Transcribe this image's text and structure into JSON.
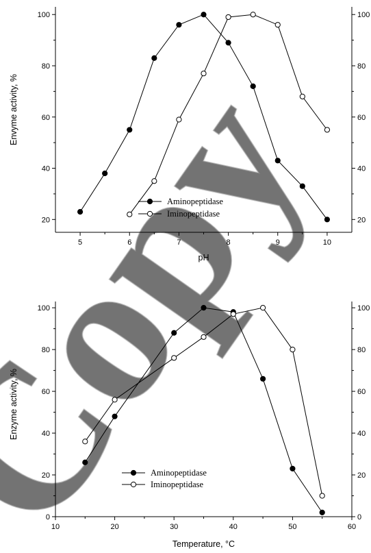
{
  "watermark": {
    "text": "Copy",
    "color": "#c8c8c8"
  },
  "chart_data": [
    {
      "type": "line",
      "xlabel": "pH",
      "ylabel": "Envyme activity, %",
      "xlim": [
        4.5,
        10.5
      ],
      "ylim": [
        15,
        103
      ],
      "x_ticks": [
        5,
        6,
        7,
        8,
        9,
        10
      ],
      "y_ticks": [
        20,
        40,
        60,
        80,
        100
      ],
      "right_axis_ticks": [
        20,
        40,
        60,
        80,
        100
      ],
      "legend_position": "bottom-center",
      "series": [
        {
          "name": "Aminopeptidase",
          "marker": "filled-circle",
          "x": [
            5,
            5.5,
            6,
            6.5,
            7,
            7.5,
            8,
            8.5,
            9,
            9.5,
            10
          ],
          "y": [
            23,
            38,
            55,
            83,
            96,
            100,
            89,
            72,
            43,
            33,
            20
          ]
        },
        {
          "name": "Iminopeptidase",
          "marker": "open-circle",
          "x": [
            6,
            6.5,
            7,
            7.5,
            8,
            8.5,
            9,
            9.5,
            10
          ],
          "y": [
            22,
            35,
            59,
            77,
            99,
            100,
            96,
            68,
            55
          ]
        }
      ]
    },
    {
      "type": "line",
      "xlabel": "Temperature, °C",
      "ylabel": "Enzyme activity, %",
      "xlim": [
        10,
        60
      ],
      "ylim": [
        0,
        103
      ],
      "x_ticks": [
        10,
        20,
        30,
        40,
        50,
        60
      ],
      "y_ticks": [
        0,
        20,
        40,
        60,
        80,
        100
      ],
      "right_axis_ticks": [
        0,
        20,
        40,
        60,
        80,
        100
      ],
      "legend_position": "bottom-left",
      "series": [
        {
          "name": "Aminopeptidase",
          "marker": "filled-circle",
          "x": [
            15,
            20,
            30,
            35,
            40,
            45,
            50,
            55
          ],
          "y": [
            26,
            48,
            88,
            100,
            98,
            66,
            23,
            2
          ]
        },
        {
          "name": "Iminopeptidase",
          "marker": "open-circle",
          "x": [
            15,
            20,
            30,
            35,
            40,
            45,
            50,
            55
          ],
          "y": [
            36,
            56,
            76,
            86,
            97,
            100,
            80,
            10
          ]
        }
      ]
    }
  ]
}
